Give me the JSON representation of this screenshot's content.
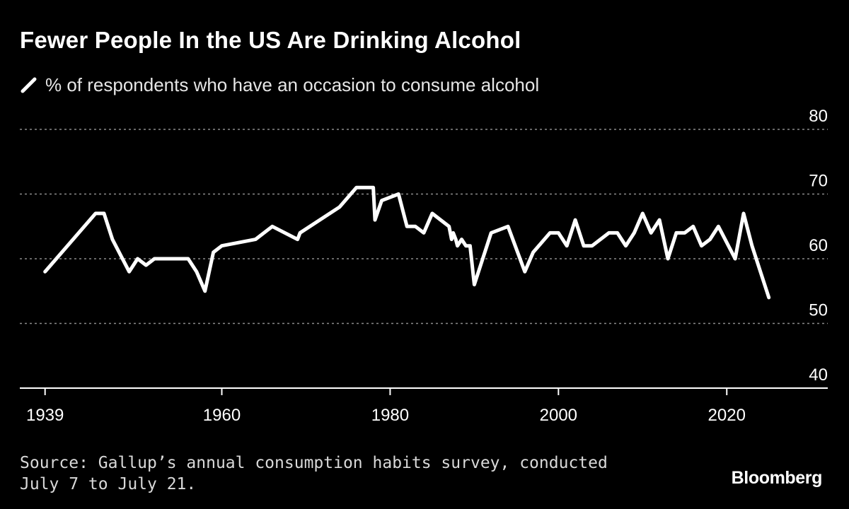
{
  "chart_data": {
    "type": "line",
    "title": "Fewer People In the US Are Drinking Alcohol",
    "series": [
      {
        "name": "% of respondents who have an occasion to consume alcohol",
        "color": "#ffffff",
        "x": [
          1939,
          1945,
          1946,
          1947,
          1949,
          1950,
          1951,
          1952,
          1953,
          1956,
          1957,
          1958,
          1959,
          1960,
          1964,
          1966,
          1969,
          1969.3,
          1974,
          1976,
          1978,
          1978.2,
          1979,
          1981,
          1982,
          1983,
          1984,
          1985,
          1986,
          1987,
          1987.3,
          1987.5,
          1987.8,
          1988,
          1988.5,
          1989,
          1989.5,
          1990,
          1992,
          1994,
          1996,
          1997,
          1999,
          2000,
          2001,
          2002,
          2003,
          2004,
          2006,
          2007,
          2008,
          2009,
          2010,
          2011,
          2012,
          2013,
          2014,
          2015,
          2016,
          2017,
          2018,
          2019,
          2021,
          2022,
          2023,
          2025
        ],
        "values": [
          58,
          67,
          67,
          63,
          58,
          60,
          59,
          60,
          60,
          60,
          58,
          55,
          61,
          62,
          63,
          65,
          63,
          64,
          68,
          71,
          71,
          66,
          69,
          70,
          65,
          65,
          64,
          67,
          66,
          65,
          63,
          64,
          63,
          62,
          63,
          62,
          62,
          56,
          64,
          65,
          58,
          61,
          64,
          64,
          62,
          66,
          62,
          62,
          64,
          64,
          62,
          64,
          67,
          64,
          66,
          60,
          64,
          64,
          65,
          62,
          63,
          65,
          60,
          67,
          62,
          54
        ]
      }
    ],
    "xlim": [
      1936,
      2032
    ],
    "ylim": [
      40,
      80
    ],
    "xticks": [
      1939,
      1960,
      1980,
      2000,
      2020
    ],
    "xtick_labels": [
      "1939",
      "1960",
      "1980",
      "2000",
      "2020"
    ],
    "yticks": [
      40,
      50,
      60,
      70,
      80
    ],
    "ytick_labels": [
      "40",
      "50",
      "60",
      "70",
      "80"
    ],
    "grid": true,
    "legend_position": "top-left"
  },
  "subtitle": "% of respondents who have an occasion to consume alcohol",
  "source": "Source: Gallup’s annual consumption habits survey, conducted July 7 to July 21.",
  "brand": "Bloomberg",
  "colors": {
    "background": "#000000",
    "line": "#ffffff",
    "grid": "#8c8c8c",
    "axis": "#ffffff",
    "text": "#ffffff"
  }
}
